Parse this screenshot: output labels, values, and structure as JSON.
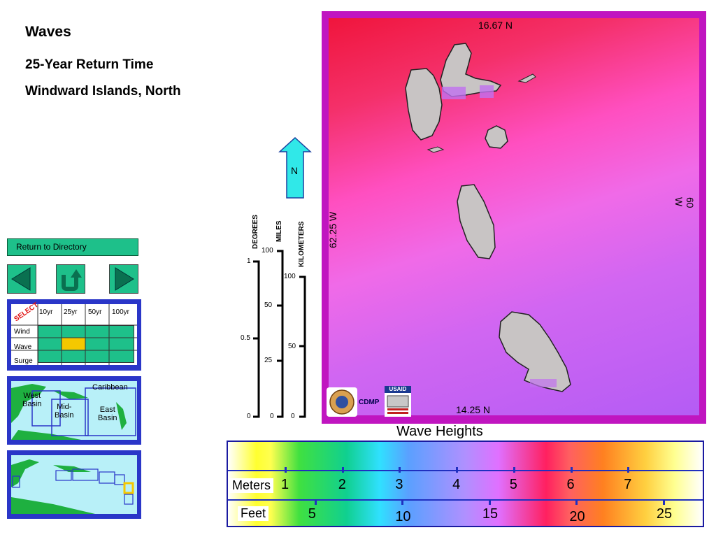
{
  "title": "Waves",
  "subtitle1": "25-Year Return Time",
  "subtitle2": "Windward Islands, North",
  "map": {
    "lat_north": "16.67 N",
    "lat_south": "14.25 N",
    "lon_west": "62.25 W",
    "lon_east": "60 W",
    "north_label": "N",
    "cdmp_label": "CDMP",
    "usaid_label": "USAID"
  },
  "scales": {
    "degrees": {
      "label": "DEGREES",
      "ticks": [
        "1",
        "0.5",
        "0"
      ]
    },
    "miles": {
      "label": "MILES",
      "ticks": [
        "100",
        "50",
        "25",
        "0"
      ]
    },
    "kilometers": {
      "label": "KILOMETERS",
      "ticks": [
        "100",
        "50",
        "0"
      ]
    }
  },
  "nav": {
    "return_label": "Return to Directory"
  },
  "select_grid": {
    "select_label": "SELECT",
    "columns": [
      "10yr",
      "25yr",
      "50yr",
      "100yr"
    ],
    "rows": [
      "Wind",
      "Wave",
      "Surge"
    ],
    "selected": {
      "row": "Wave",
      "column": "25yr"
    }
  },
  "basin_map": {
    "caribbean": "Caribbean",
    "west": "West\nBasin",
    "mid": "Mid-\nBasin",
    "east": "East\nBasin"
  },
  "legend": {
    "title": "Wave Heights",
    "meters_label": "Meters",
    "feet_label": "Feet",
    "meters": [
      "1",
      "2",
      "3",
      "4",
      "5",
      "6",
      "7"
    ],
    "feet": [
      "5",
      "10",
      "15",
      "20",
      "25"
    ]
  },
  "colors": {
    "button_green": "#1ec08a",
    "panel_blue": "#2a36c8",
    "selected_cell": "#f5c800",
    "map_frame": "#c015c0",
    "land": "#c8c4c4"
  }
}
